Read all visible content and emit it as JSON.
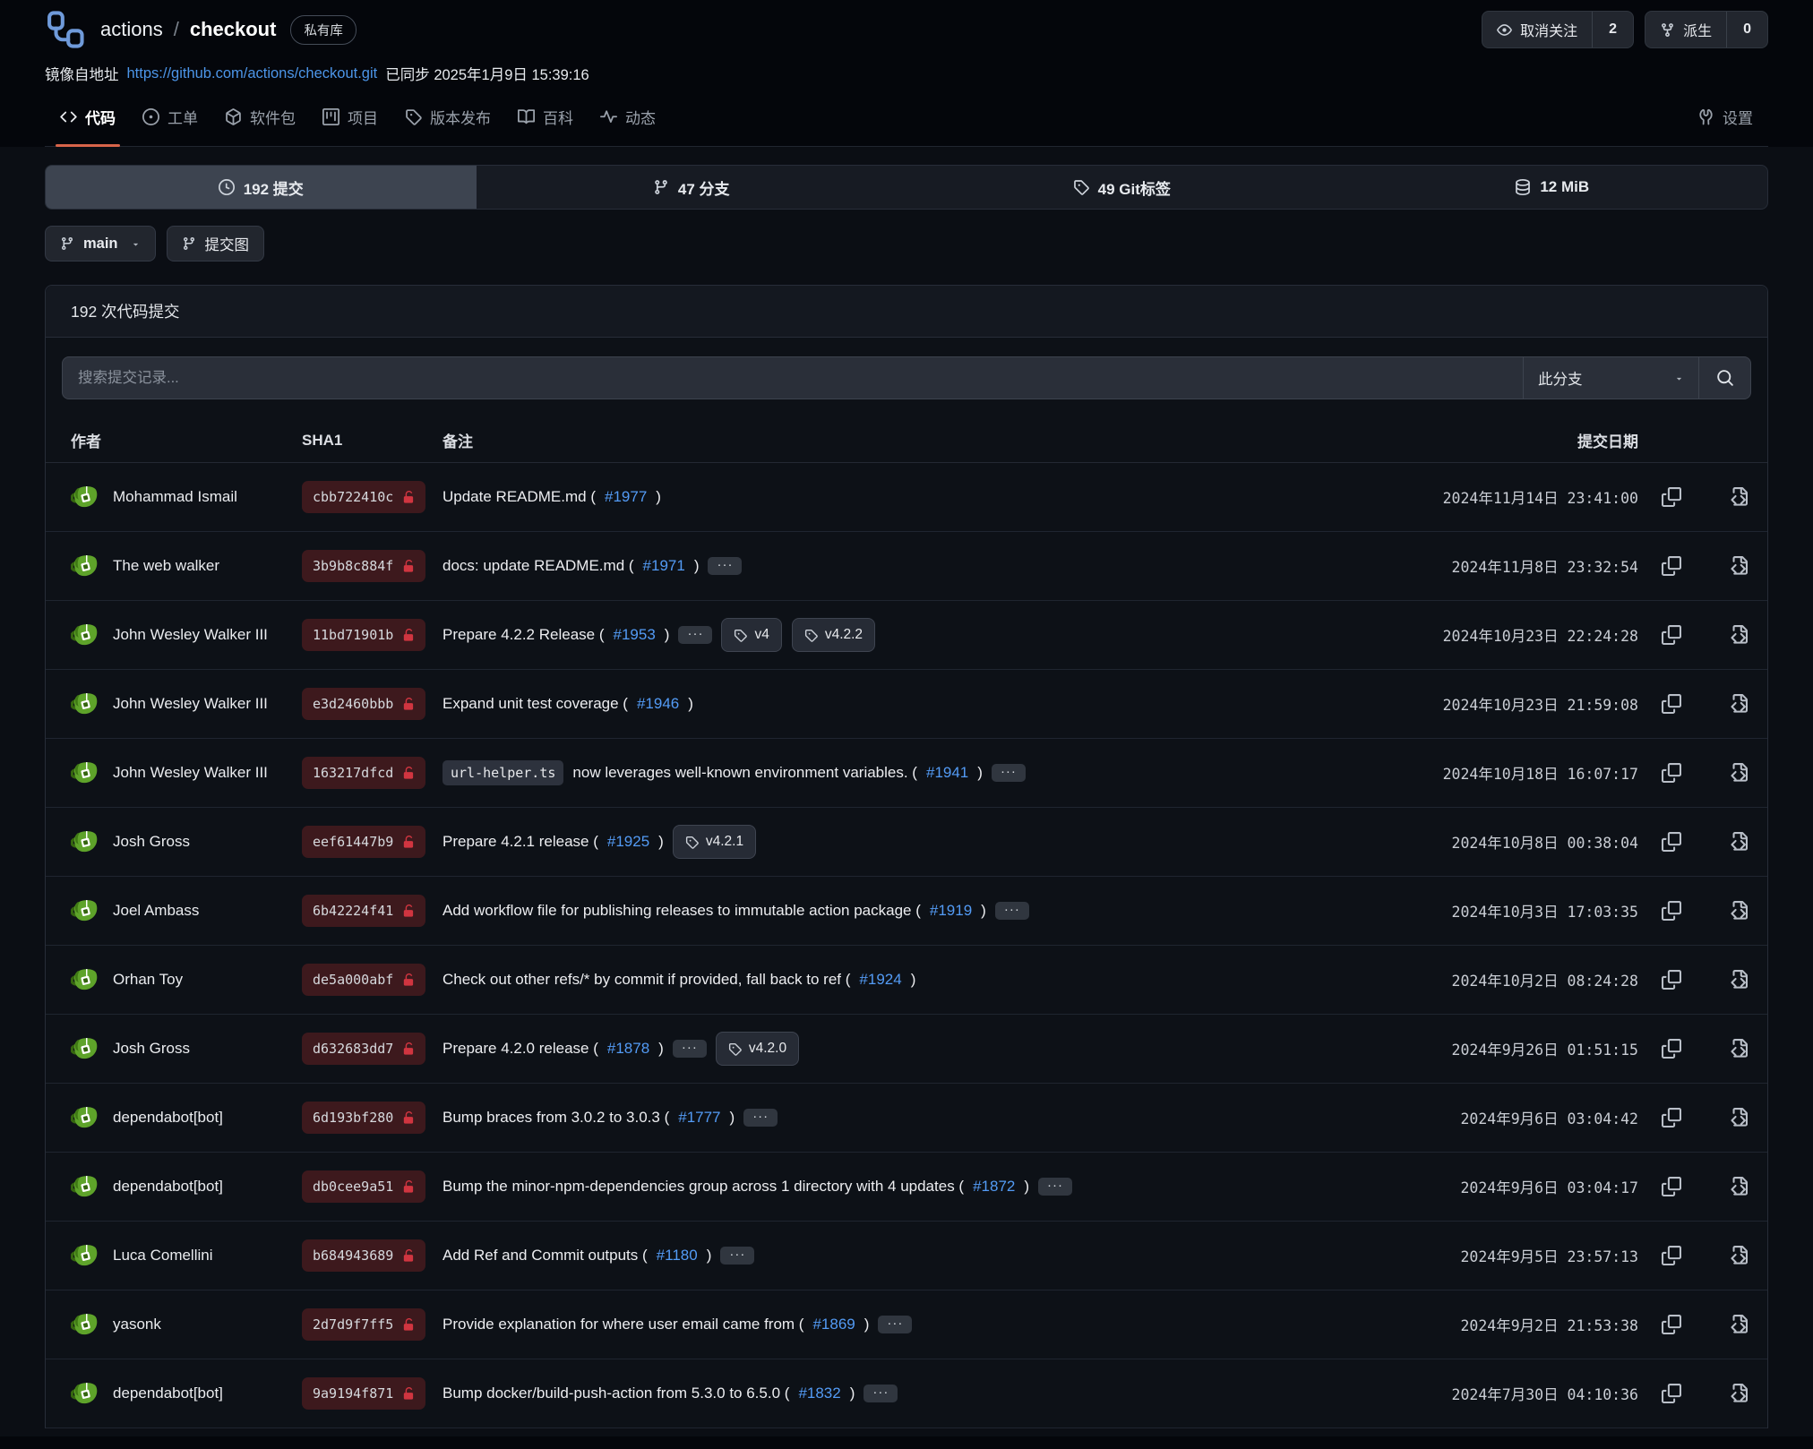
{
  "header": {
    "owner": "actions",
    "separator": "/",
    "repo": "checkout",
    "visibility_badge": "私有库",
    "unwatch": {
      "label": "取消关注",
      "count": "2"
    },
    "fork": {
      "label": "派生",
      "count": "0"
    },
    "mirror": {
      "prefix": "镜像自地址",
      "url": "https://github.com/actions/checkout.git",
      "synced": "已同步 2025年1月9日 15:39:16"
    }
  },
  "tabs": [
    {
      "name": "tab-code",
      "label": "代码",
      "icon": "code-icon",
      "active": true
    },
    {
      "name": "tab-issues",
      "label": "工单",
      "icon": "issue-icon",
      "active": false
    },
    {
      "name": "tab-packages",
      "label": "软件包",
      "icon": "package-icon",
      "active": false
    },
    {
      "name": "tab-projects",
      "label": "项目",
      "icon": "project-icon",
      "active": false
    },
    {
      "name": "tab-releases",
      "label": "版本发布",
      "icon": "tag-icon",
      "active": false
    },
    {
      "name": "tab-wiki",
      "label": "百科",
      "icon": "book-icon",
      "active": false
    },
    {
      "name": "tab-activity",
      "label": "动态",
      "icon": "pulse-icon",
      "active": false
    }
  ],
  "settings_tab": {
    "name": "tab-settings",
    "label": "设置",
    "icon": "tools-icon"
  },
  "stats": [
    {
      "name": "stat-commits",
      "label": "192 提交",
      "icon": "clock-icon",
      "active": true
    },
    {
      "name": "stat-branches",
      "label": "47 分支",
      "icon": "branch-icon",
      "active": false
    },
    {
      "name": "stat-git-tags",
      "label": "49 Git标签",
      "icon": "tag-icon",
      "active": false
    },
    {
      "name": "stat-size",
      "label": "12 MiB",
      "icon": "database-icon",
      "active": false
    }
  ],
  "toolbar": {
    "branch": "main",
    "graph": "提交图"
  },
  "panel": {
    "title": "192 次代码提交",
    "search_placeholder": "搜索提交记录...",
    "branch_filter": "此分支",
    "more_button": "···",
    "columns": {
      "author": "作者",
      "sha": "SHA1",
      "message": "备注",
      "date": "提交日期"
    }
  },
  "colors": {
    "accent": "#d8644a",
    "link": "#539bf5",
    "sha_bg": "#3d191d",
    "lock_red": "#d03540",
    "avatar_green": "#5ea32a"
  },
  "commits": [
    {
      "author": "Mohammad Ismail",
      "sha": "cbb722410c",
      "code": "",
      "text": "Update README.md (",
      "pr": "#1977",
      "after": ")",
      "more": false,
      "tags": [],
      "date": "2024年11月14日 23:41:00"
    },
    {
      "author": "The web walker",
      "sha": "3b9b8c884f",
      "code": "",
      "text": "docs: update README.md (",
      "pr": "#1971",
      "after": ")",
      "more": true,
      "tags": [],
      "date": "2024年11月8日 23:32:54"
    },
    {
      "author": "John Wesley Walker III",
      "sha": "11bd71901b",
      "code": "",
      "text": "Prepare 4.2.2 Release (",
      "pr": "#1953",
      "after": ")",
      "more": true,
      "tags": [
        "v4",
        "v4.2.2"
      ],
      "date": "2024年10月23日 22:24:28"
    },
    {
      "author": "John Wesley Walker III",
      "sha": "e3d2460bbb",
      "code": "",
      "text": "Expand unit test coverage (",
      "pr": "#1946",
      "after": ")",
      "more": false,
      "tags": [],
      "date": "2024年10月23日 21:59:08"
    },
    {
      "author": "John Wesley Walker III",
      "sha": "163217dfcd",
      "code": "url-helper.ts",
      "text": " now leverages well-known environment variables. (",
      "pr": "#1941",
      "after": ")",
      "more": true,
      "tags": [],
      "date": "2024年10月18日 16:07:17"
    },
    {
      "author": "Josh Gross",
      "sha": "eef61447b9",
      "code": "",
      "text": "Prepare 4.2.1 release (",
      "pr": "#1925",
      "after": ")",
      "more": false,
      "tags": [
        "v4.2.1"
      ],
      "date": "2024年10月8日 00:38:04"
    },
    {
      "author": "Joel Ambass",
      "sha": "6b42224f41",
      "code": "",
      "text": "Add workflow file for publishing releases to immutable action package (",
      "pr": "#1919",
      "after": ")",
      "more": true,
      "tags": [],
      "date": "2024年10月3日 17:03:35"
    },
    {
      "author": "Orhan Toy",
      "sha": "de5a000abf",
      "code": "",
      "text": "Check out other refs/* by commit if provided, fall back to ref (",
      "pr": "#1924",
      "after": ")",
      "more": false,
      "tags": [],
      "date": "2024年10月2日 08:24:28"
    },
    {
      "author": "Josh Gross",
      "sha": "d632683dd7",
      "code": "",
      "text": "Prepare 4.2.0 release (",
      "pr": "#1878",
      "after": ")",
      "more": true,
      "tags": [
        "v4.2.0"
      ],
      "date": "2024年9月26日 01:51:15"
    },
    {
      "author": "dependabot[bot]",
      "sha": "6d193bf280",
      "code": "",
      "text": "Bump braces from 3.0.2 to 3.0.3 (",
      "pr": "#1777",
      "after": ")",
      "more": true,
      "tags": [],
      "date": "2024年9月6日 03:04:42"
    },
    {
      "author": "dependabot[bot]",
      "sha": "db0cee9a51",
      "code": "",
      "text": "Bump the minor-npm-dependencies group across 1 directory with 4 updates (",
      "pr": "#1872",
      "after": ")",
      "more": true,
      "tags": [],
      "date": "2024年9月6日 03:04:17"
    },
    {
      "author": "Luca Comellini",
      "sha": "b684943689",
      "code": "",
      "text": "Add Ref and Commit outputs (",
      "pr": "#1180",
      "after": ")",
      "more": true,
      "tags": [],
      "date": "2024年9月5日 23:57:13"
    },
    {
      "author": "yasonk",
      "sha": "2d7d9f7ff5",
      "code": "",
      "text": "Provide explanation for where user email came from (",
      "pr": "#1869",
      "after": ")",
      "more": true,
      "tags": [],
      "date": "2024年9月2日 21:53:38"
    },
    {
      "author": "dependabot[bot]",
      "sha": "9a9194f871",
      "code": "",
      "text": "Bump docker/build-push-action from 5.3.0 to 6.5.0 (",
      "pr": "#1832",
      "after": ")",
      "more": true,
      "tags": [],
      "date": "2024年7月30日 04:10:36"
    }
  ]
}
